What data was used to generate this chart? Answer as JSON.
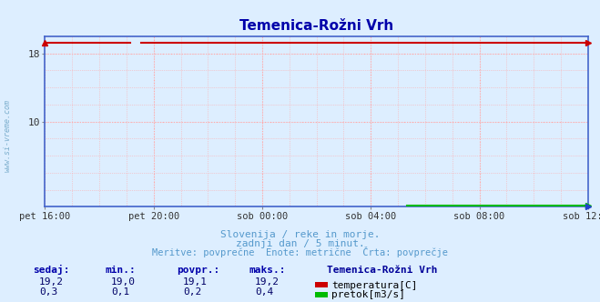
{
  "title": "Temenica-Rožni Vrh",
  "title_color": "#0000aa",
  "bg_color": "#ddeeff",
  "plot_bg_color": "#ddeeff",
  "grid_color": "#ffaaaa",
  "border_color": "#4466cc",
  "x_tick_labels": [
    "pet 16:00",
    "pet 20:00",
    "sob 00:00",
    "sob 04:00",
    "sob 08:00",
    "sob 12:00"
  ],
  "x_tick_positions": [
    0,
    48,
    96,
    144,
    192,
    240
  ],
  "n_points": 289,
  "temp_value": 19.2,
  "temp_min": 19.0,
  "temp_avg": 19.1,
  "temp_max": 19.2,
  "flow_value": 0.3,
  "flow_min": 0.1,
  "flow_avg": 0.2,
  "flow_max": 0.4,
  "temp_color": "#cc0000",
  "flow_color": "#00bb00",
  "blue_line_color": "#2244cc",
  "ylim_min": 0,
  "ylim_max": 20,
  "subtitle_line1": "Slovenija / reke in morje.",
  "subtitle_line2": "zadnji dan / 5 minut.",
  "subtitle_line3": "Meritve: povprečne  Enote: metrične  Črta: povprečje",
  "subtitle_color": "#5599cc",
  "legend_title": "Temenica-Rožni Vrh",
  "legend_title_color": "#000099",
  "table_header_color": "#0000aa",
  "table_value_color": "#000066",
  "watermark": "www.si-vreme.com",
  "watermark_color": "#7aadcc",
  "temp_row": [
    "19,2",
    "19,0",
    "19,1",
    "19,2"
  ],
  "flow_row": [
    "0,3",
    "0,1",
    "0,2",
    "0,4"
  ],
  "headers": [
    "sedaj:",
    "min.:",
    "povpr.:",
    "maks.:"
  ]
}
